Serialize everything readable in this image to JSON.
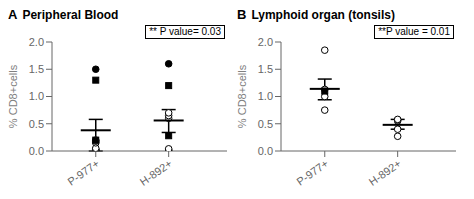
{
  "chart_data": [
    {
      "type": "scatter",
      "panel_label": "A",
      "title": "Peripheral Blood",
      "annotation": "** P value= 0.03",
      "ylabel": "% CD8+cells",
      "categories": [
        "P-977+",
        "H-892+"
      ],
      "ylim": [
        0,
        2.0
      ],
      "yticks": [
        {
          "value": 0.0,
          "label": "0.0"
        },
        {
          "value": 0.5,
          "label": "0.5"
        },
        {
          "value": 1.0,
          "label": "1.0"
        },
        {
          "value": 1.5,
          "label": "1.5"
        },
        {
          "value": 2.0,
          "label": "2.0"
        }
      ],
      "grid": false,
      "color": "#000000",
      "series": [
        {
          "marker": "circle_open",
          "values": [
            [
              0.0,
              0.02,
              0.03,
              0.05,
              0.15,
              0.18,
              0.2
            ],
            [
              0.0,
              0.02,
              0.04,
              0.6,
              0.65,
              0.7
            ]
          ]
        },
        {
          "marker": "square",
          "values": [
            [
              0.2,
              1.3
            ],
            [
              0.28,
              1.2
            ]
          ]
        },
        {
          "marker": "circle",
          "values": [
            [
              1.5
            ],
            [
              1.6
            ]
          ]
        }
      ],
      "means": [
        0.38,
        0.56
      ],
      "error_low": [
        0.38,
        0.22
      ],
      "error_high": [
        0.2,
        0.2
      ]
    },
    {
      "type": "scatter",
      "panel_label": "B",
      "title": "Lymphoid organ (tonsils)",
      "annotation": "**P value = 0.01",
      "ylabel": "% CD8+cells",
      "categories": [
        "P-977+",
        "H-892+"
      ],
      "ylim": [
        0,
        2.0
      ],
      "yticks": [
        {
          "value": 0.0,
          "label": "0.0"
        },
        {
          "value": 0.5,
          "label": "0.5"
        },
        {
          "value": 1.0,
          "label": "1.0"
        },
        {
          "value": 1.5,
          "label": "1.5"
        },
        {
          "value": 2.0,
          "label": "2.0"
        }
      ],
      "grid": false,
      "color": "#000000",
      "series": [
        {
          "marker": "circle_open",
          "values": [
            [
              0.75,
              1.0,
              1.13,
              1.85
            ],
            [
              0.27,
              0.4,
              0.55,
              0.57,
              0.58
            ]
          ]
        },
        {
          "marker": "square",
          "values": [
            [
              1.1
            ],
            []
          ]
        }
      ],
      "means": [
        1.14,
        0.48
      ],
      "error_low": [
        0.2,
        0.08
      ],
      "error_high": [
        0.18,
        0.1
      ]
    }
  ]
}
